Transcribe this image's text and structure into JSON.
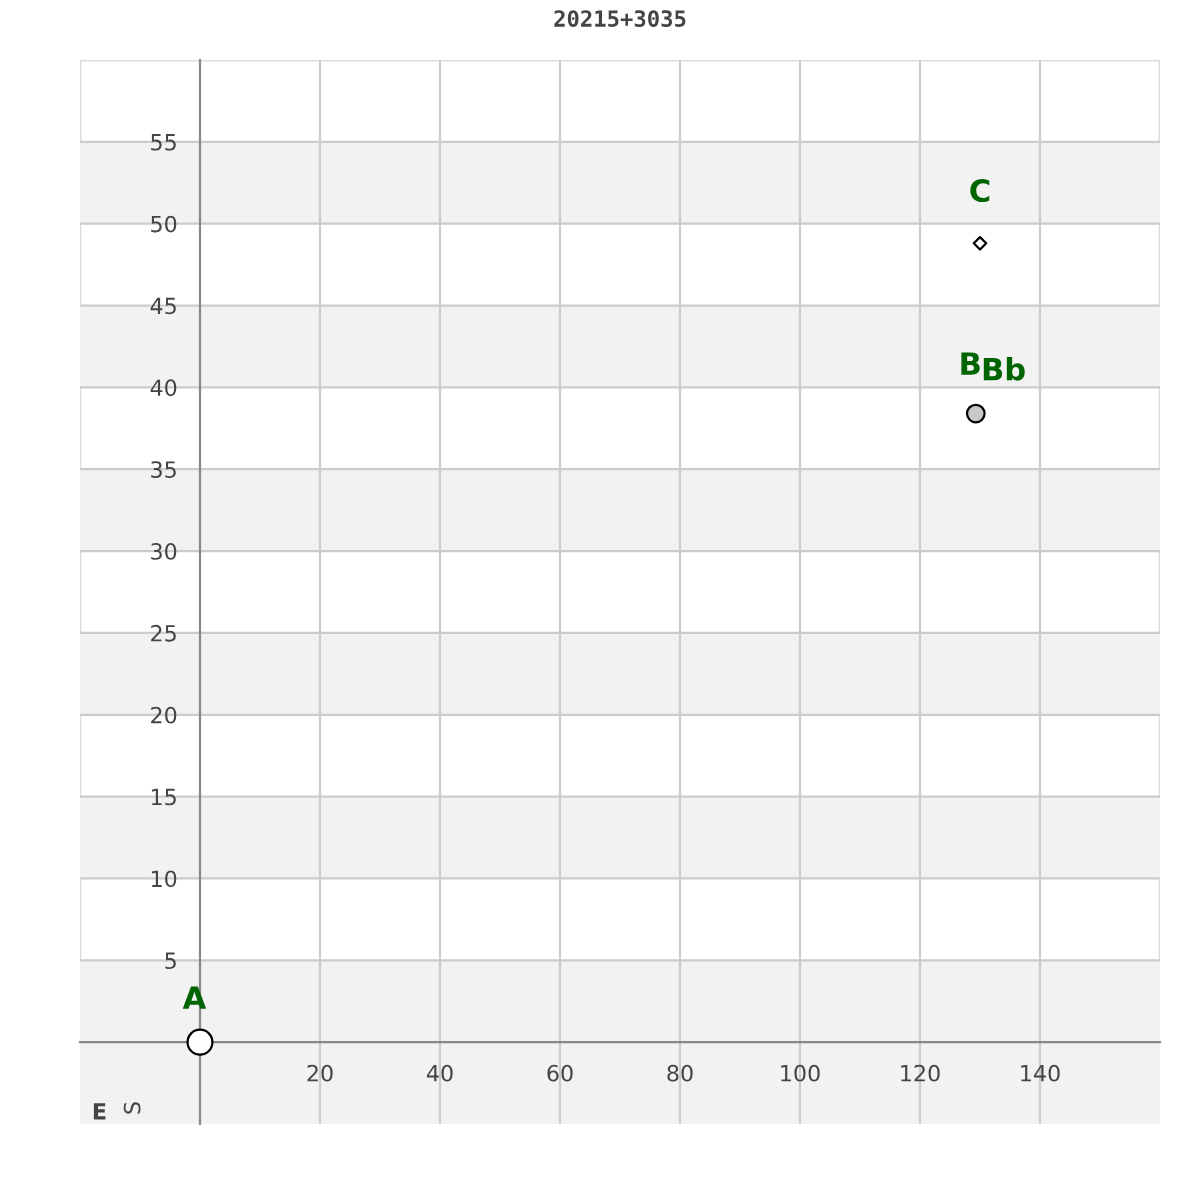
{
  "chart_data": {
    "type": "scatter",
    "title": "20215+3035",
    "xlabel": "E",
    "ylabel": "S",
    "series": [
      {
        "x": [
          0
        ],
        "values": [
          0
        ],
        "marker": "circle",
        "color": "#ffffff"
      },
      {
        "x": [
          129.3
        ],
        "values": [
          38.4
        ],
        "marker": "circle",
        "color": "#c8c8c8"
      },
      {
        "x": [
          130
        ],
        "values": [
          48.8
        ],
        "marker": "diamond",
        "color": "#ffffff"
      }
    ],
    "annotations": [
      {
        "text": "A",
        "x": 0,
        "y": 0
      },
      {
        "text": "B",
        "x": 129.3,
        "y": 38.4
      },
      {
        "text": "Bb",
        "x": 129.3,
        "y": 38.4
      },
      {
        "text": "C",
        "x": 130,
        "y": 48.8
      }
    ],
    "xlim": [
      -20,
      160
    ],
    "ylim": [
      -5,
      60
    ],
    "xticks": [
      20,
      40,
      60,
      80,
      100,
      120,
      140
    ],
    "yticks": [
      5,
      10,
      15,
      20,
      25,
      30,
      35,
      40,
      45,
      50,
      55
    ],
    "grid": true
  }
}
